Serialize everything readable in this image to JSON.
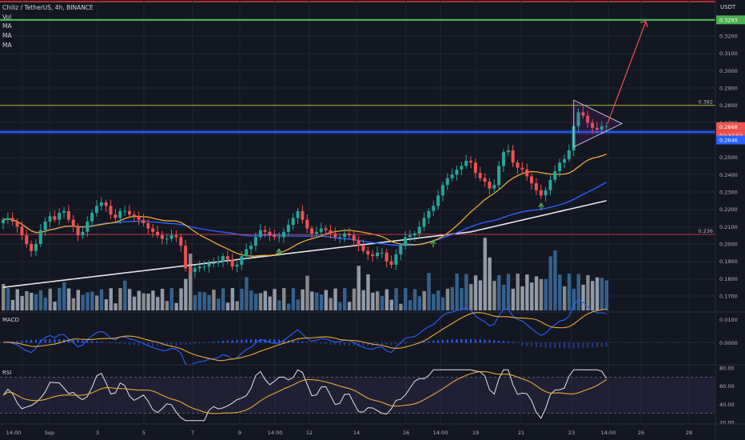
{
  "header": {
    "symbol_line": "Chiliz / TetherUS, 4h, BINANCE",
    "indicators": [
      "Vol",
      "MA",
      "MA",
      "MA"
    ]
  },
  "price_axis": {
    "currency": "USDT",
    "ticks": [
      "0.3200",
      "0.3100",
      "0.3000",
      "0.2900",
      "0.2800",
      "0.2700",
      "0.2500",
      "0.2400",
      "0.2300",
      "0.2200",
      "0.2100",
      "0.2000",
      "0.1900",
      "0.1800",
      "0.1700"
    ],
    "target_tag": "0.3293",
    "current_tag": "0.2668",
    "countdown_tag": "02:37:50",
    "support_tag": "0.2646"
  },
  "fib_levels": [
    {
      "label": "0.382",
      "price": 0.28,
      "color": "#c6cc3a"
    },
    {
      "label": "0.236",
      "price": 0.2055,
      "color": "#e0395a"
    }
  ],
  "time_axis": [
    "14:00",
    "Sep",
    "3",
    "5",
    "7",
    "9",
    "14:00",
    "12",
    "14",
    "16",
    "14:00",
    "19",
    "21",
    "23",
    "14:00",
    "26",
    "28"
  ],
  "macd": {
    "label": "MACD",
    "ticks": [
      "0.0100",
      "0.0000"
    ]
  },
  "rsi": {
    "label": "RSI",
    "ticks": [
      "80.00",
      "60.00",
      "40.00",
      "20.00"
    ]
  },
  "colors": {
    "up": "#26a69a",
    "down": "#ef5350",
    "bg": "#131722",
    "target_line": "#4caf50",
    "support_line": "#2962ff",
    "ma_fast": "#f0a830",
    "ma_mid": "#2962ff",
    "ma_slow": "#e6e6e6"
  },
  "chart_data": {
    "type": "candlestick",
    "timeframe": "4h",
    "ylim": [
      0.165,
      0.335
    ],
    "close": [
      0.214,
      0.215,
      0.213,
      0.21,
      0.205,
      0.2,
      0.196,
      0.2,
      0.208,
      0.213,
      0.216,
      0.214,
      0.218,
      0.219,
      0.214,
      0.21,
      0.205,
      0.207,
      0.213,
      0.218,
      0.222,
      0.224,
      0.222,
      0.217,
      0.215,
      0.219,
      0.219,
      0.217,
      0.216,
      0.214,
      0.212,
      0.209,
      0.207,
      0.205,
      0.203,
      0.203,
      0.205,
      0.204,
      0.199,
      0.186,
      0.184,
      0.186,
      0.187,
      0.187,
      0.189,
      0.189,
      0.19,
      0.193,
      0.191,
      0.187,
      0.188,
      0.193,
      0.197,
      0.199,
      0.204,
      0.208,
      0.207,
      0.205,
      0.204,
      0.204,
      0.207,
      0.211,
      0.215,
      0.219,
      0.214,
      0.209,
      0.206,
      0.207,
      0.209,
      0.208,
      0.206,
      0.204,
      0.204,
      0.206,
      0.205,
      0.202,
      0.199,
      0.196,
      0.194,
      0.193,
      0.195,
      0.195,
      0.19,
      0.188,
      0.194,
      0.199,
      0.204,
      0.205,
      0.206,
      0.21,
      0.215,
      0.219,
      0.222,
      0.228,
      0.234,
      0.238,
      0.24,
      0.243,
      0.245,
      0.248,
      0.247,
      0.241,
      0.238,
      0.236,
      0.232,
      0.234,
      0.245,
      0.253,
      0.254,
      0.247,
      0.244,
      0.243,
      0.239,
      0.235,
      0.231,
      0.228,
      0.231,
      0.237,
      0.242,
      0.247,
      0.249,
      0.254,
      0.268,
      0.276,
      0.274,
      0.27,
      0.267,
      0.266,
      0.268,
      0.268
    ],
    "target_price": 0.3293,
    "support_price": 0.2646,
    "current_price": 0.2668,
    "pattern": "symmetrical triangle breakout projection"
  }
}
